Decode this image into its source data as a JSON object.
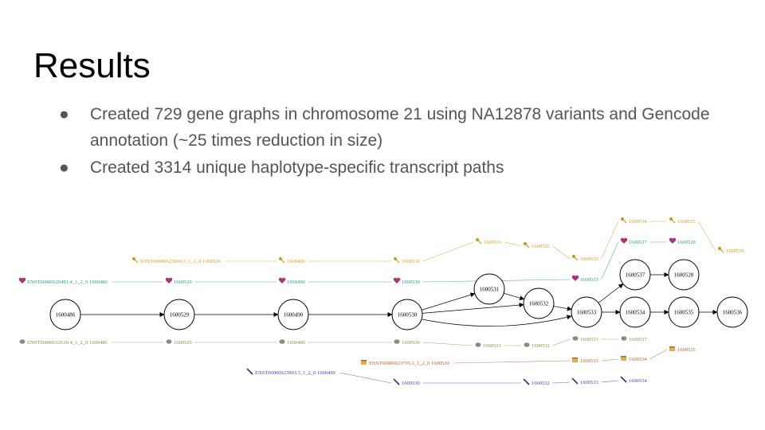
{
  "slide": {
    "title": "Results",
    "bullets": [
      {
        "marker": "●",
        "text": "Created 729 gene graphs in chromosome 21 using NA12878 variants and Gencode annotation (~25 times reduction in size)"
      },
      {
        "marker": "●",
        "text": "Created 3314 unique haplotype-specific transcript paths"
      }
    ]
  },
  "graph": {
    "nodes": [
      {
        "id": "1600486"
      },
      {
        "id": "1600529"
      },
      {
        "id": "1600490"
      },
      {
        "id": "1600530"
      },
      {
        "id": "1600531"
      },
      {
        "id": "1600532"
      },
      {
        "id": "1600533"
      },
      {
        "id": "1600537"
      },
      {
        "id": "1600528"
      },
      {
        "id": "1600534"
      },
      {
        "id": "1600535"
      },
      {
        "id": "1600536"
      }
    ],
    "edges": [
      [
        "1600486",
        "1600529"
      ],
      [
        "1600529",
        "1600490"
      ],
      [
        "1600490",
        "1600530"
      ],
      [
        "1600530",
        "1600531"
      ],
      [
        "1600530",
        "1600532"
      ],
      [
        "1600530",
        "1600533"
      ],
      [
        "1600531",
        "1600532"
      ],
      [
        "1600532",
        "1600533"
      ],
      [
        "1600533",
        "1600537"
      ],
      [
        "1600533",
        "1600534"
      ],
      [
        "1600537",
        "1600528"
      ],
      [
        "1600534",
        "1600535"
      ],
      [
        "1600535",
        "1600536"
      ]
    ],
    "paths": [
      {
        "icon": "key-icon",
        "color": "#d4a020",
        "labels": [
          "ENST00000623960.3_1_2_0  1600529",
          "1600490",
          "1600530",
          "1600531",
          "1600532",
          "1600533",
          "1600534",
          "1600535",
          "1600536"
        ]
      },
      {
        "icon": "heart-icon",
        "color": "#2a9d80",
        "labels": [
          "ENST00000620481.4_1_2_0  1600486",
          "1600529",
          "1600490",
          "1600530",
          "1600533",
          "1600537",
          "1600528"
        ]
      },
      {
        "icon": "bell-icon",
        "color": "#7a9a3a",
        "labels": [
          "ENST00000612610.4_1_2_0  1600486",
          "1600529",
          "1600490",
          "1600530",
          "1600531",
          "1600532",
          "1600533",
          "1600537"
        ]
      },
      {
        "icon": "cake-icon",
        "color": "#c0602a",
        "labels": [
          "ENST00000623795.1_1_2_0  1600530",
          "1600533",
          "1600534",
          "1600535"
        ]
      },
      {
        "icon": "pen-icon",
        "color": "#5a3aa0",
        "labels": [
          "ENST00000623903.3_1_2_0  1600490",
          "1600530",
          "1600532",
          "1600533",
          "1600534"
        ]
      }
    ]
  }
}
